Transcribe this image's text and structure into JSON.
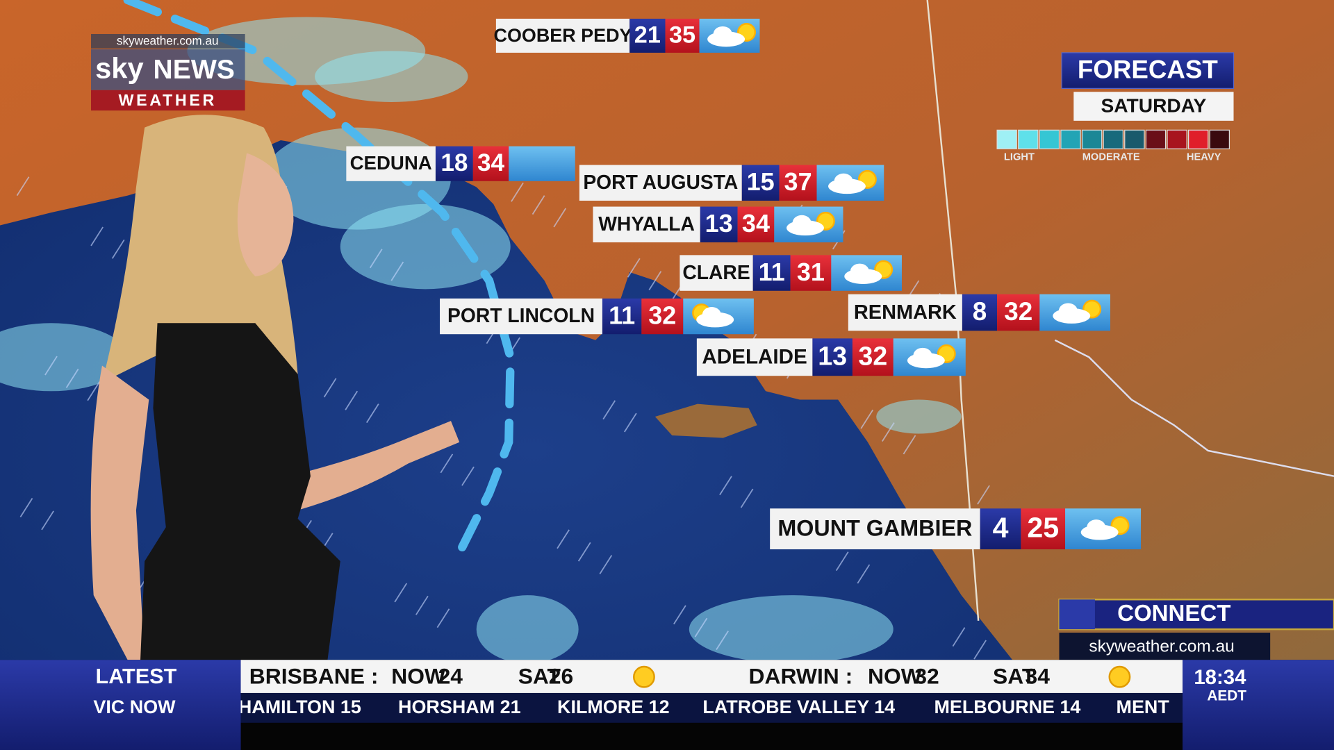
{
  "logo": {
    "url": "skyweather.com.au",
    "brand": "sky",
    "network": "NEWS",
    "section": "WEATHER"
  },
  "forecast": {
    "title": "FORECAST",
    "day": "SATURDAY",
    "legend": [
      "LIGHT",
      "MODERATE",
      "HEAVY"
    ]
  },
  "cities": [
    {
      "name": "COOBER PEDY",
      "min": 21,
      "max": 35
    },
    {
      "name": "CEDUNA",
      "min": 18,
      "max": 34
    },
    {
      "name": "PORT AUGUSTA",
      "min": 15,
      "max": 37
    },
    {
      "name": "WHYALLA",
      "min": 13,
      "max": 34
    },
    {
      "name": "CLARE",
      "min": 11,
      "max": 31
    },
    {
      "name": "PORT LINCOLN",
      "min": 11,
      "max": 32
    },
    {
      "name": "RENMARK",
      "min": 8,
      "max": 32
    },
    {
      "name": "ADELAIDE",
      "min": 13,
      "max": 32
    },
    {
      "name": "MOUNT GAMBIER",
      "min": 4,
      "max": 25
    }
  ],
  "connect": {
    "title": "CONNECT",
    "url": "skyweather.com.au"
  },
  "ticker": {
    "label": "LATEST",
    "sublabel": "VIC NOW",
    "headline": [
      {
        "city": "BRISBANE :",
        "now_label": "NOW",
        "now": 24,
        "day_label": "SAT",
        "day": 26
      },
      {
        "city": "DARWIN :",
        "now_label": "NOW",
        "now": 32,
        "day_label": "SAT",
        "day": 34
      }
    ],
    "crawl": [
      "HAMILTON 15",
      "HORSHAM 21",
      "KILMORE 12",
      "LATROBE VALLEY 14",
      "MELBOURNE 14",
      "MENT"
    ]
  },
  "clock": {
    "time": "18:34",
    "zone": "AEDT"
  }
}
